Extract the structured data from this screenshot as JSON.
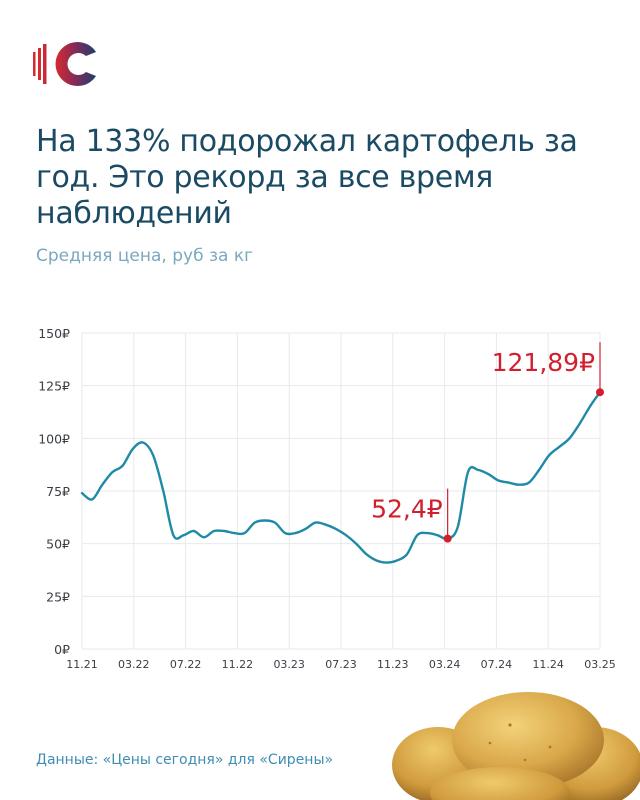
{
  "header": {
    "title": "На 133% подорожал картофель за год. Это рекорд за все время наблюдений",
    "subtitle": "Средняя цена, руб за кг"
  },
  "footer": {
    "source": "Данные: «Цены сегодня» для «Сирены»"
  },
  "colors": {
    "title": "#1b4a64",
    "subtitle": "#7aa8bf",
    "line": "#1f8aa6",
    "highlight": "#d01f2e",
    "logo_blue": "#1c3f6e",
    "logo_red": "#d72a2f"
  },
  "icons": {
    "logo": "sirena-logo",
    "decoration": "potatoes-image"
  },
  "chart_data": {
    "type": "line",
    "ylabel": "",
    "ylim": [
      0,
      150
    ],
    "y_ticks": [
      "0₽",
      "25₽",
      "50₽",
      "75₽",
      "100₽",
      "125₽",
      "150₽"
    ],
    "x_ticks": [
      "11.21",
      "03.22",
      "07.22",
      "11.22",
      "03.23",
      "07.23",
      "11.23",
      "03.24",
      "07.24",
      "11.24",
      "03.25"
    ],
    "grid": true,
    "series": [
      {
        "values": [
          74,
          71,
          78,
          84,
          87,
          95,
          98,
          92,
          75,
          54,
          54,
          56,
          53,
          56,
          56,
          55,
          55,
          60,
          61,
          60,
          55,
          55,
          57,
          60,
          59,
          57,
          54,
          50,
          45,
          42,
          41,
          42,
          45,
          54,
          55,
          54,
          52.4,
          58,
          84,
          85,
          83,
          80,
          79,
          78,
          79,
          85,
          92,
          96,
          100,
          107,
          115,
          121.89
        ]
      }
    ],
    "annotations": [
      {
        "label": "52,4₽",
        "index": 36,
        "value": 52.4
      },
      {
        "label": "121,89₽",
        "index": 51,
        "value": 121.89
      }
    ]
  }
}
